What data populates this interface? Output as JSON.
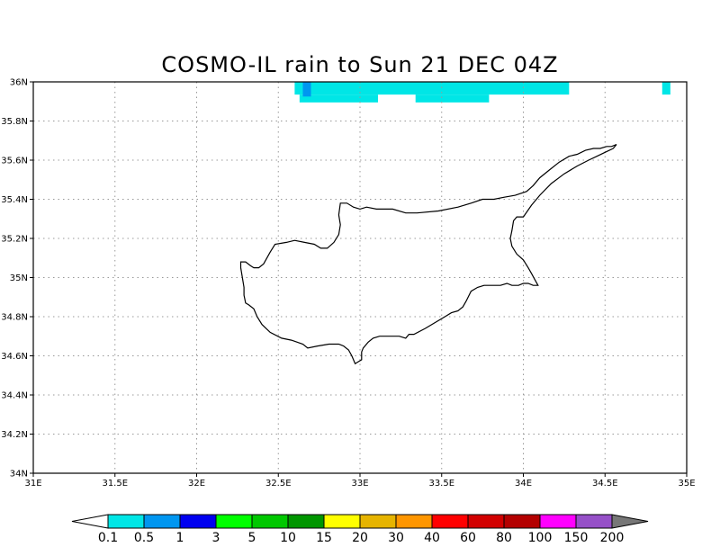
{
  "title": "COSMO-IL rain to Sun 21 DEC 04Z",
  "map": {
    "lon_range": [
      31,
      35
    ],
    "lat_range": [
      34,
      36
    ],
    "lon_ticks": [
      {
        "v": 31.0,
        "label": "31E"
      },
      {
        "v": 31.5,
        "label": "31.5E"
      },
      {
        "v": 32.0,
        "label": "32E"
      },
      {
        "v": 32.5,
        "label": "32.5E"
      },
      {
        "v": 33.0,
        "label": "33E"
      },
      {
        "v": 33.5,
        "label": "33.5E"
      },
      {
        "v": 34.0,
        "label": "34E"
      },
      {
        "v": 34.5,
        "label": "34.5E"
      },
      {
        "v": 35.0,
        "label": "35E"
      }
    ],
    "lat_ticks": [
      {
        "v": 34.0,
        "label": "34N"
      },
      {
        "v": 34.2,
        "label": "34.2N"
      },
      {
        "v": 34.4,
        "label": "34.4N"
      },
      {
        "v": 34.6,
        "label": "34.6N"
      },
      {
        "v": 34.8,
        "label": "34.8N"
      },
      {
        "v": 35.0,
        "label": "35N"
      },
      {
        "v": 35.2,
        "label": "35.2N"
      },
      {
        "v": 35.4,
        "label": "35.4N"
      },
      {
        "v": 35.6,
        "label": "35.6N"
      },
      {
        "v": 35.8,
        "label": "35.8N"
      },
      {
        "v": 36.0,
        "label": "36N"
      }
    ],
    "grid": true,
    "coastline_color": "#000000",
    "coastline_lonlat": [
      [
        32.27,
        35.08
      ],
      [
        32.3,
        35.08
      ],
      [
        32.33,
        35.06
      ],
      [
        32.35,
        35.05
      ],
      [
        32.38,
        35.05
      ],
      [
        32.41,
        35.07
      ],
      [
        32.45,
        35.13
      ],
      [
        32.48,
        35.17
      ],
      [
        32.55,
        35.18
      ],
      [
        32.6,
        35.19
      ],
      [
        32.66,
        35.18
      ],
      [
        32.72,
        35.17
      ],
      [
        32.76,
        35.15
      ],
      [
        32.8,
        35.15
      ],
      [
        32.84,
        35.18
      ],
      [
        32.87,
        35.22
      ],
      [
        32.88,
        35.27
      ],
      [
        32.87,
        35.32
      ],
      [
        32.88,
        35.38
      ],
      [
        32.92,
        35.38
      ],
      [
        32.96,
        35.36
      ],
      [
        33.0,
        35.35
      ],
      [
        33.04,
        35.36
      ],
      [
        33.1,
        35.35
      ],
      [
        33.2,
        35.35
      ],
      [
        33.28,
        35.33
      ],
      [
        33.35,
        35.33
      ],
      [
        33.48,
        35.34
      ],
      [
        33.6,
        35.36
      ],
      [
        33.68,
        35.38
      ],
      [
        33.75,
        35.4
      ],
      [
        33.82,
        35.4
      ],
      [
        33.88,
        35.41
      ],
      [
        33.95,
        35.42
      ],
      [
        34.02,
        35.44
      ],
      [
        34.06,
        35.47
      ],
      [
        34.1,
        35.51
      ],
      [
        34.16,
        35.55
      ],
      [
        34.22,
        35.59
      ],
      [
        34.28,
        35.62
      ],
      [
        34.33,
        35.63
      ],
      [
        34.38,
        35.65
      ],
      [
        34.43,
        35.66
      ],
      [
        34.47,
        35.66
      ],
      [
        34.51,
        35.67
      ],
      [
        34.54,
        35.67
      ],
      [
        34.57,
        35.68
      ],
      [
        34.55,
        35.66
      ],
      [
        34.5,
        35.64
      ],
      [
        34.45,
        35.62
      ],
      [
        34.4,
        35.6
      ],
      [
        34.33,
        35.57
      ],
      [
        34.25,
        35.53
      ],
      [
        34.17,
        35.48
      ],
      [
        34.1,
        35.42
      ],
      [
        34.05,
        35.37
      ],
      [
        34.0,
        35.31
      ],
      [
        33.96,
        35.31
      ],
      [
        33.94,
        35.29
      ],
      [
        33.93,
        35.24
      ],
      [
        33.92,
        35.2
      ],
      [
        33.93,
        35.16
      ],
      [
        33.96,
        35.12
      ],
      [
        34.0,
        35.09
      ],
      [
        34.03,
        35.05
      ],
      [
        34.05,
        35.02
      ],
      [
        34.07,
        34.99
      ],
      [
        34.09,
        34.96
      ],
      [
        34.06,
        34.96
      ],
      [
        34.03,
        34.97
      ],
      [
        34.0,
        34.97
      ],
      [
        33.97,
        34.96
      ],
      [
        33.93,
        34.96
      ],
      [
        33.9,
        34.97
      ],
      [
        33.86,
        34.96
      ],
      [
        33.8,
        34.96
      ],
      [
        33.76,
        34.96
      ],
      [
        33.72,
        34.95
      ],
      [
        33.68,
        34.93
      ],
      [
        33.65,
        34.88
      ],
      [
        33.63,
        34.85
      ],
      [
        33.6,
        34.83
      ],
      [
        33.56,
        34.82
      ],
      [
        33.52,
        34.8
      ],
      [
        33.46,
        34.77
      ],
      [
        33.4,
        34.74
      ],
      [
        33.33,
        34.71
      ],
      [
        33.3,
        34.71
      ],
      [
        33.28,
        34.69
      ],
      [
        33.24,
        34.7
      ],
      [
        33.18,
        34.7
      ],
      [
        33.12,
        34.7
      ],
      [
        33.08,
        34.69
      ],
      [
        33.05,
        34.67
      ],
      [
        33.02,
        34.64
      ],
      [
        33.01,
        34.62
      ],
      [
        33.01,
        34.58
      ],
      [
        32.99,
        34.57
      ],
      [
        32.97,
        34.56
      ],
      [
        32.95,
        34.6
      ],
      [
        32.93,
        34.63
      ],
      [
        32.9,
        34.65
      ],
      [
        32.87,
        34.66
      ],
      [
        32.81,
        34.66
      ],
      [
        32.74,
        34.65
      ],
      [
        32.68,
        34.64
      ],
      [
        32.65,
        34.66
      ],
      [
        32.58,
        34.68
      ],
      [
        32.52,
        34.69
      ],
      [
        32.45,
        34.72
      ],
      [
        32.4,
        34.76
      ],
      [
        32.37,
        34.8
      ],
      [
        32.35,
        34.84
      ],
      [
        32.32,
        34.86
      ],
      [
        32.3,
        34.87
      ],
      [
        32.29,
        34.91
      ],
      [
        32.29,
        34.95
      ],
      [
        32.28,
        35.0
      ],
      [
        32.27,
        35.05
      ],
      [
        32.27,
        35.08
      ]
    ],
    "rain_patches": [
      {
        "lon0": 32.6,
        "lon1": 34.28,
        "lat0": 35.935,
        "lat1": 36.0,
        "color": "#00e6e6"
      },
      {
        "lon0": 32.63,
        "lon1": 33.11,
        "lat0": 35.895,
        "lat1": 35.935,
        "color": "#00e6e6"
      },
      {
        "lon0": 33.34,
        "lon1": 33.79,
        "lat0": 35.895,
        "lat1": 35.935,
        "color": "#00e6e6"
      },
      {
        "lon0": 32.65,
        "lon1": 32.7,
        "lat0": 35.925,
        "lat1": 36.0,
        "color": "#0096f0"
      },
      {
        "lon0": 34.85,
        "lon1": 34.9,
        "lat0": 35.935,
        "lat1": 36.0,
        "color": "#00e6e6"
      }
    ]
  },
  "colorbar": {
    "colors": [
      "#00e6e6",
      "#0096f0",
      "#0000f0",
      "#00ff00",
      "#00c800",
      "#009600",
      "#ffff00",
      "#e6b400",
      "#ff9600",
      "#ff0000",
      "#d20000",
      "#b40000",
      "#ff00ff",
      "#9650c8"
    ],
    "below_color": "#ffffff",
    "above_color": "#777777",
    "labels": [
      "0.1",
      "0.5",
      "1",
      "3",
      "5",
      "10",
      "15",
      "20",
      "30",
      "40",
      "60",
      "80",
      "100",
      "150",
      "200"
    ]
  }
}
